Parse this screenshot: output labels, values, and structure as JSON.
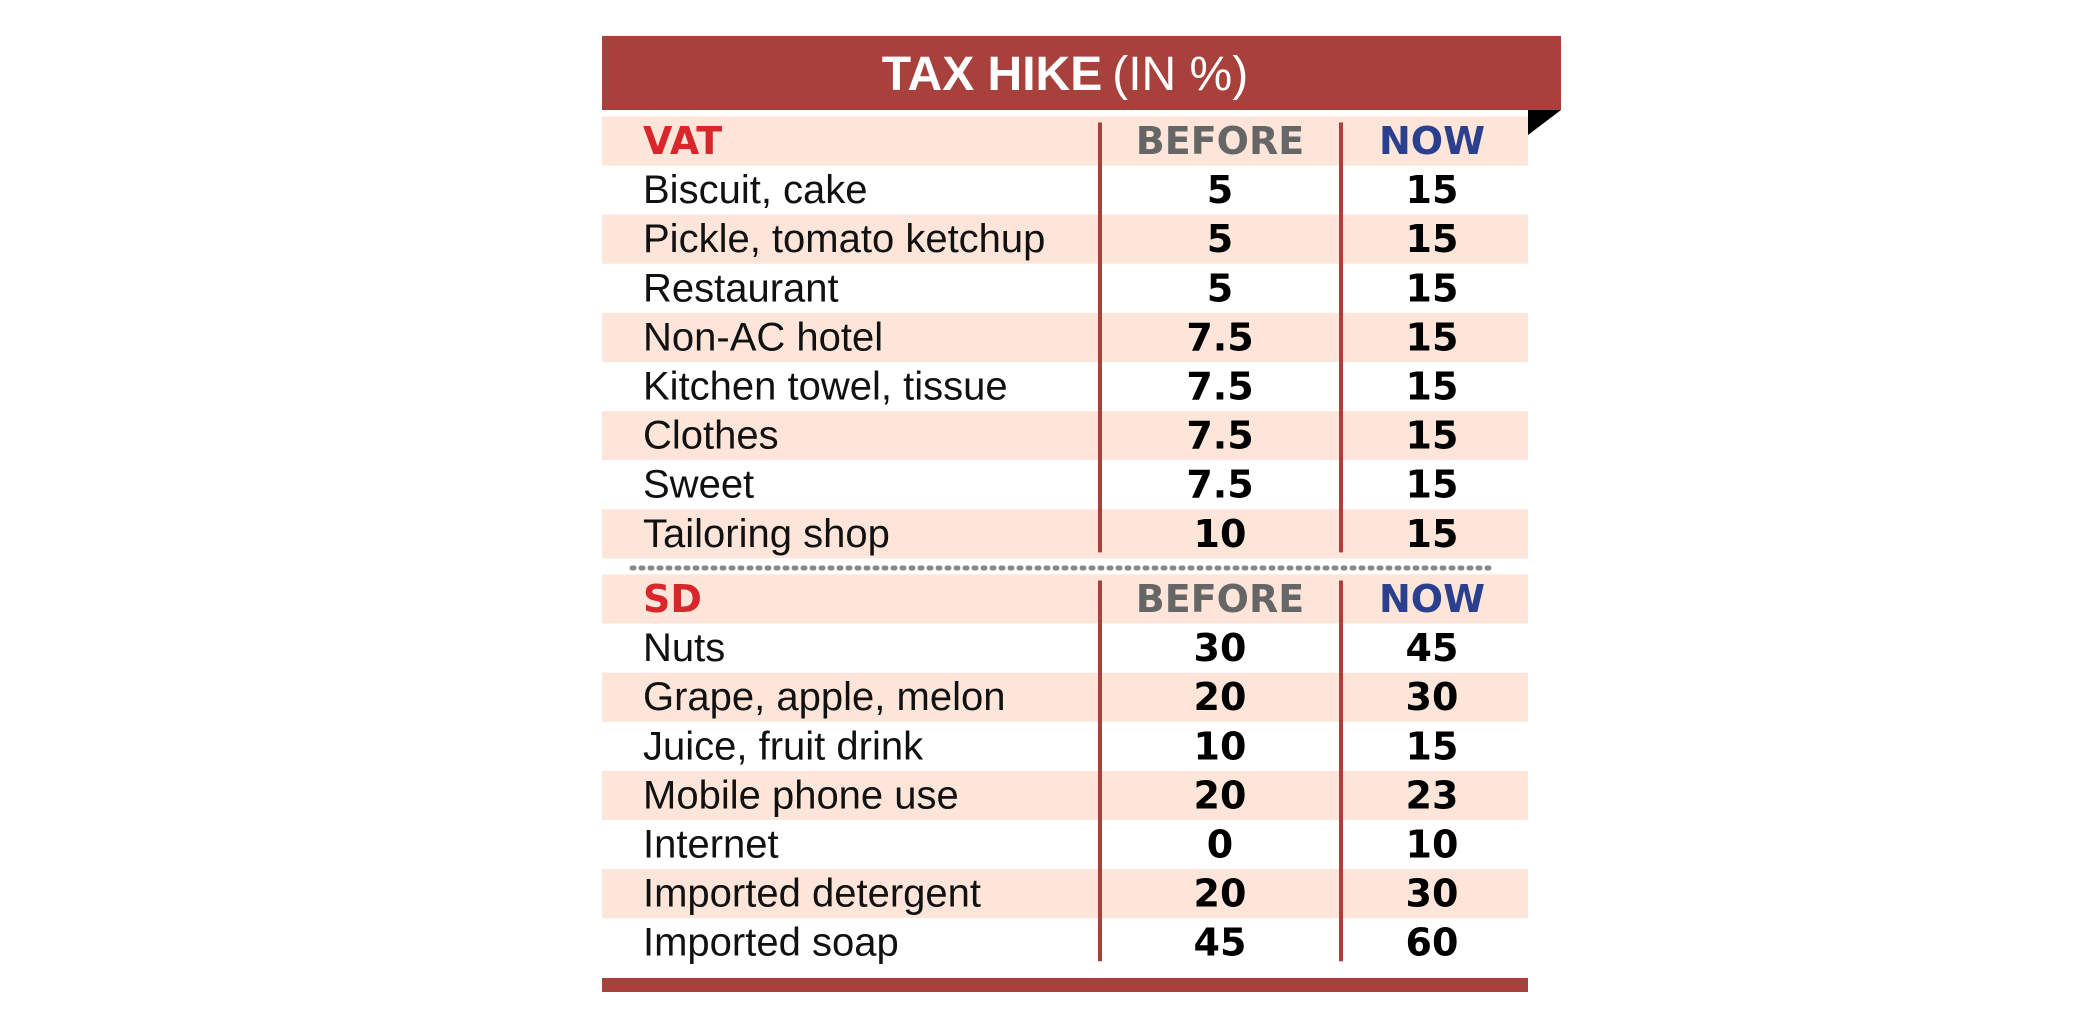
{
  "header": {
    "title": "TAX HIKE",
    "title_unit": "(IN %)"
  },
  "sections": [
    {
      "columns": [
        "VAT",
        "BEFORE",
        "NOW"
      ],
      "rows": [
        [
          "Biscuit, cake",
          5,
          15
        ],
        [
          "Pickle, tomato ketchup",
          5,
          15
        ],
        [
          "Restaurant",
          5,
          15
        ],
        [
          "Non-AC hotel",
          7.5,
          15
        ],
        [
          "Kitchen towel, tissue",
          7.5,
          15
        ],
        [
          "Clothes",
          7.5,
          15
        ],
        [
          "Sweet",
          7.5,
          15
        ],
        [
          "Tailoring shop",
          10,
          15
        ]
      ]
    },
    {
      "columns": [
        "SD",
        "BEFORE",
        "NOW"
      ],
      "rows": [
        [
          "Nuts",
          30,
          45
        ],
        [
          "Grape, apple, melon",
          20,
          30
        ],
        [
          "Juice, fruit drink",
          10,
          15
        ],
        [
          "Mobile phone use",
          20,
          23
        ],
        [
          "Internet",
          0,
          10
        ],
        [
          "Imported detergent",
          20,
          30
        ],
        [
          "Imported soap",
          45,
          60
        ]
      ]
    }
  ]
}
